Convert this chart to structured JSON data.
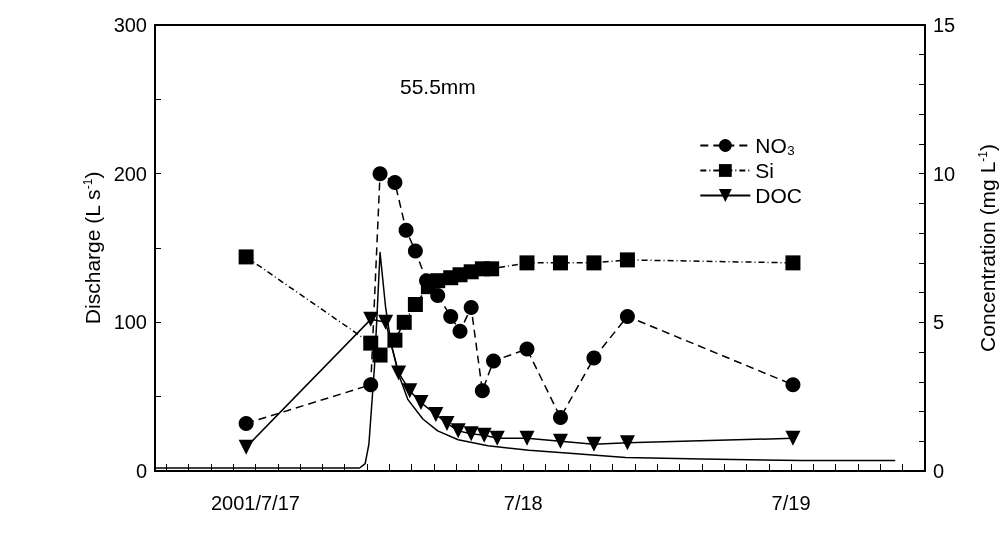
{
  "chart_data": {
    "type": "line",
    "xlabel": null,
    "ylabel": "Discharge (L s$^{-1}$)",
    "y2label": "Concentration (mg L$^{-1}$)",
    "xlim": [
      "2001-07-16T15:00",
      "2001-07-19T12:00"
    ],
    "xticks": [
      {
        "value": "2001-07-16T16:00",
        "label": null
      },
      {
        "value": "2001-07-16T18:00",
        "label": null
      },
      {
        "value": "2001-07-16T20:00",
        "label": null
      },
      {
        "value": "2001-07-16T22:00",
        "label": null
      },
      {
        "value": "2001-07-17T00:00",
        "label": "2001/7/17"
      },
      {
        "value": "2001-07-17T02:00",
        "label": null
      },
      {
        "value": "2001-07-17T04:00",
        "label": null
      },
      {
        "value": "2001-07-17T06:00",
        "label": null
      },
      {
        "value": "2001-07-17T08:00",
        "label": null
      },
      {
        "value": "2001-07-17T10:00",
        "label": null
      },
      {
        "value": "2001-07-17T12:00",
        "label": null
      },
      {
        "value": "2001-07-17T14:00",
        "label": null
      },
      {
        "value": "2001-07-17T16:00",
        "label": null
      },
      {
        "value": "2001-07-17T18:00",
        "label": null
      },
      {
        "value": "2001-07-17T20:00",
        "label": null
      },
      {
        "value": "2001-07-17T22:00",
        "label": null
      },
      {
        "value": "2001-07-18T00:00",
        "label": "7/18"
      },
      {
        "value": "2001-07-18T02:00",
        "label": null
      },
      {
        "value": "2001-07-18T04:00",
        "label": null
      },
      {
        "value": "2001-07-18T06:00",
        "label": null
      },
      {
        "value": "2001-07-18T08:00",
        "label": null
      },
      {
        "value": "2001-07-18T10:00",
        "label": null
      },
      {
        "value": "2001-07-18T12:00",
        "label": null
      },
      {
        "value": "2001-07-18T14:00",
        "label": null
      },
      {
        "value": "2001-07-18T16:00",
        "label": null
      },
      {
        "value": "2001-07-18T18:00",
        "label": null
      },
      {
        "value": "2001-07-18T20:00",
        "label": null
      },
      {
        "value": "2001-07-18T22:00",
        "label": null
      },
      {
        "value": "2001-07-19T00:00",
        "label": "7/19"
      },
      {
        "value": "2001-07-19T02:00",
        "label": null
      },
      {
        "value": "2001-07-19T04:00",
        "label": null
      },
      {
        "value": "2001-07-19T06:00",
        "label": null
      },
      {
        "value": "2001-07-19T08:00",
        "label": null
      },
      {
        "value": "2001-07-19T10:00",
        "label": null
      }
    ],
    "ylim": [
      0,
      300
    ],
    "yticks": [
      0,
      {
        "value": 50,
        "label": null
      },
      100,
      {
        "value": 150,
        "label": null
      },
      200,
      {
        "value": 250,
        "label": null
      },
      300
    ],
    "y2lim": [
      0,
      15
    ],
    "y2ticks": [
      0,
      {
        "value": 1,
        "label": null
      },
      {
        "value": 2,
        "label": null
      },
      {
        "value": 3,
        "label": null
      },
      {
        "value": 4,
        "label": null
      },
      5,
      {
        "value": 6,
        "label": null
      },
      {
        "value": 7,
        "label": null
      },
      {
        "value": 8,
        "label": null
      },
      {
        "value": 9,
        "label": null
      },
      10,
      {
        "value": 11,
        "label": null
      },
      {
        "value": 12,
        "label": null
      },
      {
        "value": 13,
        "label": null
      },
      {
        "value": 14,
        "label": null
      },
      15
    ],
    "grid": false,
    "legend": "top right",
    "annotations": [
      "55.5mm"
    ],
    "series": [
      {
        "color": "#000000",
        "marker": "none",
        "line_style": "solid",
        "x": [
          "2001-07-16T15:00",
          "2001-07-17T09:20",
          "2001-07-17T09:50",
          "2001-07-17T10:10",
          "2001-07-17T10:40",
          "2001-07-17T11:10",
          "2001-07-17T11:40",
          "2001-07-17T12:10",
          "2001-07-17T12:50",
          "2001-07-17T13:40",
          "2001-07-17T15:00",
          "2001-07-17T16:20",
          "2001-07-17T18:10",
          "2001-07-17T20:50",
          "2001-07-18T00:30",
          "2001-07-18T04:10",
          "2001-07-18T09:10",
          "2001-07-18T16:00",
          "2001-07-19T01:00",
          "2001-07-19T09:20"
        ],
        "values": [
          2,
          2,
          5,
          18,
          70,
          147,
          110,
          85,
          65,
          48,
          35,
          27,
          21,
          17,
          14,
          12,
          9,
          8,
          7,
          7
        ]
      },
      {
        "name": "NO₃",
        "color": "#000000",
        "marker": "circle",
        "line_style": "dashed",
        "axis": "y2",
        "x": [
          "2001-07-16T23:10",
          "2001-07-17T10:20",
          "2001-07-17T11:10",
          "2001-07-17T12:30",
          "2001-07-17T13:30",
          "2001-07-17T14:20",
          "2001-07-17T15:20",
          "2001-07-17T16:20",
          "2001-07-17T17:30",
          "2001-07-17T18:20",
          "2001-07-17T19:20",
          "2001-07-17T20:20",
          "2001-07-17T21:20",
          "2001-07-18T00:20",
          "2001-07-18T03:20",
          "2001-07-18T06:20",
          "2001-07-18T09:20",
          "2001-07-19T00:10"
        ],
        "values": [
          1.6,
          2.9,
          10.0,
          9.7,
          8.1,
          7.4,
          6.4,
          5.9,
          5.2,
          4.7,
          5.5,
          2.7,
          3.7,
          4.1,
          1.8,
          3.8,
          5.2,
          2.9
        ]
      },
      {
        "name": "Si",
        "color": "#000000",
        "marker": "square",
        "line_style": "dotted",
        "axis": "y2",
        "x": [
          "2001-07-16T23:10",
          "2001-07-17T10:20",
          "2001-07-17T11:10",
          "2001-07-17T12:30",
          "2001-07-17T13:20",
          "2001-07-17T14:20",
          "2001-07-17T15:30",
          "2001-07-17T16:20",
          "2001-07-17T17:30",
          "2001-07-17T18:20",
          "2001-07-17T19:20",
          "2001-07-17T20:20",
          "2001-07-17T21:10",
          "2001-07-18T00:20",
          "2001-07-18T03:20",
          "2001-07-18T06:20",
          "2001-07-18T09:20",
          "2001-07-19T00:10"
        ],
        "values": [
          7.2,
          4.3,
          3.9,
          4.4,
          5.0,
          5.6,
          6.2,
          6.4,
          6.5,
          6.6,
          6.7,
          6.8,
          6.8,
          7.0,
          7.0,
          7.0,
          7.1,
          7.0
        ]
      },
      {
        "name": "DOC",
        "color": "#000000",
        "marker": "triangle",
        "line_style": "solid",
        "axis": "y2",
        "x": [
          "2001-07-16T23:10",
          "2001-07-17T10:20",
          "2001-07-17T11:40",
          "2001-07-17T12:50",
          "2001-07-17T13:50",
          "2001-07-17T14:50",
          "2001-07-17T16:10",
          "2001-07-17T17:10",
          "2001-07-17T18:10",
          "2001-07-17T19:20",
          "2001-07-17T20:30",
          "2001-07-17T21:40",
          "2001-07-18T00:20",
          "2001-07-18T03:20",
          "2001-07-18T06:20",
          "2001-07-18T09:20",
          "2001-07-19T00:10"
        ],
        "values": [
          0.8,
          5.1,
          5.0,
          3.3,
          2.7,
          2.3,
          1.9,
          1.6,
          1.35,
          1.25,
          1.2,
          1.1,
          1.1,
          1.0,
          0.9,
          0.95,
          1.1
        ]
      }
    ]
  }
}
